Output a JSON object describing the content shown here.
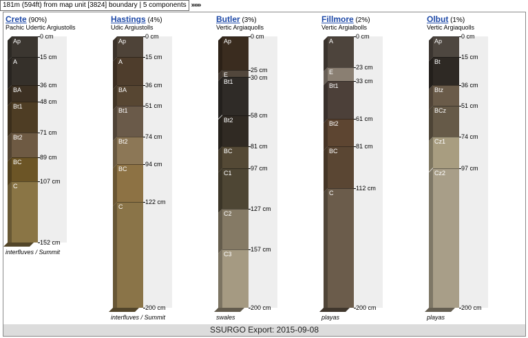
{
  "topbar": {
    "distance_text": "181m (594ft) from map unit [3824] boundary | 5 components",
    "more_label": "»»»"
  },
  "footer": {
    "text": "SSURGO Export: 2015-09-08"
  },
  "profiles": [
    {
      "name": "Crete",
      "pct": "(90%)",
      "taxon": "Pachic Udertic Argiustolls",
      "landform": "interfluves / Summit",
      "horizons": [
        {
          "name": "Ap",
          "top": 0,
          "bottom": 15,
          "color": "#3b3630"
        },
        {
          "name": "A",
          "top": 15,
          "bottom": 36,
          "color": "#35302a"
        },
        {
          "name": "BA",
          "top": 36,
          "bottom": 48,
          "color": "#3d3123"
        },
        {
          "name": "Bt1",
          "top": 48,
          "bottom": 71,
          "color": "#4e3d24"
        },
        {
          "name": "Bt2",
          "top": 71,
          "bottom": 89,
          "color": "#6e5a43"
        },
        {
          "name": "BC",
          "top": 89,
          "bottom": 107,
          "color": "#6c5526"
        },
        {
          "name": "C",
          "top": 107,
          "bottom": 152,
          "color": "#8a7545"
        }
      ],
      "depth_labels": [
        "0 cm",
        "15 cm",
        "36 cm",
        "48 cm",
        "71 cm",
        "89 cm",
        "107 cm",
        "152 cm"
      ]
    },
    {
      "name": "Hastings",
      "pct": "(4%)",
      "taxon": "Udic Argiustolls",
      "landform": "interfluves / Summit",
      "horizons": [
        {
          "name": "Ap",
          "top": 0,
          "bottom": 15,
          "color": "#4e4338"
        },
        {
          "name": "A",
          "top": 15,
          "bottom": 36,
          "color": "#4e3d2c"
        },
        {
          "name": "BA",
          "top": 36,
          "bottom": 51,
          "color": "#574632"
        },
        {
          "name": "Bt1",
          "top": 51,
          "bottom": 74,
          "color": "#6a5a49"
        },
        {
          "name": "Bt2",
          "top": 74,
          "bottom": 94,
          "color": "#8c7756"
        },
        {
          "name": "BC",
          "top": 94,
          "bottom": 122,
          "color": "#8d7244"
        },
        {
          "name": "C",
          "top": 122,
          "bottom": 200,
          "color": "#8a7448"
        }
      ],
      "depth_labels": [
        "0 cm",
        "15 cm",
        "36 cm",
        "51 cm",
        "74 cm",
        "94 cm",
        "122 cm",
        "200 cm"
      ]
    },
    {
      "name": "Butler",
      "pct": "(3%)",
      "taxon": "Vertic Argiaquolls",
      "landform": "swales",
      "horizons": [
        {
          "name": "Ap",
          "top": 0,
          "bottom": 25,
          "color": "#3a2c1f"
        },
        {
          "name": "E",
          "top": 25,
          "bottom": 30,
          "color": "#52473c"
        },
        {
          "name": "Bt1",
          "top": 30,
          "bottom": 58,
          "color": "#2f2b27"
        },
        {
          "name": "Bt2",
          "top": 58,
          "bottom": 81,
          "color": "#302a23"
        },
        {
          "name": "BC",
          "top": 81,
          "bottom": 97,
          "color": "#544935"
        },
        {
          "name": "C1",
          "top": 97,
          "bottom": 127,
          "color": "#4e4634"
        },
        {
          "name": "C2",
          "top": 127,
          "bottom": 157,
          "color": "#857a65"
        },
        {
          "name": "C3",
          "top": 157,
          "bottom": 200,
          "color": "#a59a82"
        }
      ],
      "depth_labels": [
        "0 cm",
        "25 cm",
        "30 cm",
        "58 cm",
        "81 cm",
        "97 cm",
        "127 cm",
        "157 cm",
        "200 cm"
      ]
    },
    {
      "name": "Fillmore",
      "pct": "(2%)",
      "taxon": "Vertic Argialbolls",
      "landform": "playas",
      "horizons": [
        {
          "name": "A",
          "top": 0,
          "bottom": 23,
          "color": "#4d443c"
        },
        {
          "name": "E",
          "top": 23,
          "bottom": 33,
          "color": "#8a7f72"
        },
        {
          "name": "Bt1",
          "top": 33,
          "bottom": 61,
          "color": "#4c4039"
        },
        {
          "name": "Bt2",
          "top": 61,
          "bottom": 81,
          "color": "#5d4531"
        },
        {
          "name": "BC",
          "top": 81,
          "bottom": 112,
          "color": "#5a4633"
        },
        {
          "name": "C",
          "top": 112,
          "bottom": 200,
          "color": "#6b5c4b"
        }
      ],
      "depth_labels": [
        "0 cm",
        "23 cm",
        "33 cm",
        "61 cm",
        "81 cm",
        "112 cm",
        "200 cm"
      ]
    },
    {
      "name": "Olbut",
      "pct": "(1%)",
      "taxon": "Vertic Argiaquolls",
      "landform": "playas",
      "horizons": [
        {
          "name": "Ap",
          "top": 0,
          "bottom": 15,
          "color": "#4e4740"
        },
        {
          "name": "Bt",
          "top": 15,
          "bottom": 36,
          "color": "#2e2924"
        },
        {
          "name": "Btz",
          "top": 36,
          "bottom": 51,
          "color": "#6a5b49"
        },
        {
          "name": "BCz",
          "top": 51,
          "bottom": 74,
          "color": "#665a48"
        },
        {
          "name": "Cz1",
          "top": 74,
          "bottom": 97,
          "color": "#a89d80"
        },
        {
          "name": "Cz2",
          "top": 97,
          "bottom": 200,
          "color": "#a89e88"
        }
      ],
      "depth_labels": [
        "0 cm",
        "15 cm",
        "36 cm",
        "51 cm",
        "74 cm",
        "97 cm",
        "200 cm"
      ]
    }
  ]
}
